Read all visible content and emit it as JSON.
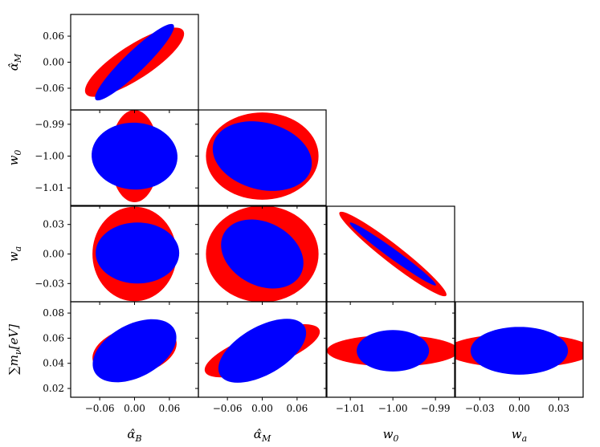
{
  "chart_data": {
    "type": "triangle-corner-ellipses",
    "parameters": [
      {
        "key": "aB",
        "label": "α̂_B",
        "ticks": [
          "-0.06",
          "0.00",
          "0.06"
        ],
        "range": [
          -0.11,
          0.11
        ]
      },
      {
        "key": "aM",
        "label": "α̂_M",
        "ticks": [
          "-0.06",
          "0.00",
          "0.06"
        ],
        "range": [
          -0.11,
          0.11
        ]
      },
      {
        "key": "w0",
        "label": "w_0",
        "ticks": [
          "-1.01",
          "-1.00",
          "-0.99"
        ],
        "range": [
          -1.0155,
          -0.9855
        ]
      },
      {
        "key": "wa",
        "label": "w_a",
        "ticks": [
          "-0.03",
          "0.00",
          "0.03"
        ],
        "range": [
          -0.0485,
          0.0485
        ]
      },
      {
        "key": "mnu",
        "label": "∑m_ν[eV]",
        "ticks": [
          "0.02",
          "0.04",
          "0.06",
          "0.08"
        ],
        "range": [
          0.013,
          0.089
        ]
      }
    ],
    "series": [
      {
        "color": "#ff0000"
      },
      {
        "color": "#0000ff"
      }
    ],
    "ellipses": [
      {
        "x": "aB",
        "y": "aM",
        "red": {
          "cx": 0.0,
          "cy": 0.0,
          "rx": 0.1,
          "ry": 0.039,
          "angle": 33
        },
        "blue": {
          "cx": 0.0,
          "cy": 0.0,
          "rx": 0.093,
          "ry": 0.024,
          "angle": 44
        }
      },
      {
        "x": "aB",
        "y": "w0",
        "red": {
          "cx": 0.0,
          "cy": -1.0,
          "rx": 0.042,
          "ry": 0.0145,
          "angle": 0
        },
        "blue": {
          "cx": 0.0,
          "cy": -1.0,
          "rx": 0.074,
          "ry": 0.0105,
          "angle": -3
        }
      },
      {
        "x": "aB",
        "y": "wa",
        "red": {
          "cx": 0.0,
          "cy": 0.0,
          "rx": 0.0725,
          "ry": 0.048,
          "angle": 0
        },
        "blue": {
          "cx": 0.005,
          "cy": 0.001,
          "rx": 0.072,
          "ry": 0.031,
          "angle": 0
        }
      },
      {
        "x": "aB",
        "y": "mnu",
        "red": {
          "cx": 0.0,
          "cy": 0.05,
          "rx": 0.074,
          "ry": 0.019,
          "angle": 14
        },
        "blue": {
          "cx": 0.0,
          "cy": 0.05,
          "rx": 0.078,
          "ry": 0.021,
          "angle": 28
        }
      },
      {
        "x": "aM",
        "y": "w0",
        "red": {
          "cx": 0.0,
          "cy": -1.0,
          "rx": 0.097,
          "ry": 0.0137,
          "angle": 0
        },
        "blue": {
          "cx": 0.0,
          "cy": -1.0,
          "rx": 0.087,
          "ry": 0.0105,
          "angle": -15
        }
      },
      {
        "x": "aM",
        "y": "wa",
        "red": {
          "cx": 0.0,
          "cy": 0.0,
          "rx": 0.097,
          "ry": 0.049,
          "angle": 0
        },
        "blue": {
          "cx": 0.0,
          "cy": 0.0,
          "rx": 0.075,
          "ry": 0.032,
          "angle": -28
        }
      },
      {
        "x": "aM",
        "y": "mnu",
        "red": {
          "cx": 0.0,
          "cy": 0.05,
          "rx": 0.105,
          "ry": 0.014,
          "angle": 20
        },
        "blue": {
          "cx": 0.0,
          "cy": 0.05,
          "rx": 0.084,
          "ry": 0.019,
          "angle": 30
        }
      },
      {
        "x": "w0",
        "y": "wa",
        "red": {
          "cx": -1.0,
          "cy": 0.0,
          "rx": 0.0159,
          "ry": 0.0093,
          "angle": -38
        },
        "blue": {
          "cx": -1.0,
          "cy": 0.0,
          "rx": 0.0125,
          "ry": 0.0049,
          "angle": -36
        }
      },
      {
        "x": "w0",
        "y": "mnu",
        "red": {
          "cx": -1.0,
          "cy": 0.05,
          "rx": 0.0155,
          "ry": 0.0125,
          "angle": 0
        },
        "blue": {
          "cx": -1.0,
          "cy": 0.05,
          "rx": 0.0085,
          "ry": 0.0165,
          "angle": 0
        }
      },
      {
        "x": "wa",
        "y": "mnu",
        "red": {
          "cx": 0.0,
          "cy": 0.05,
          "rx": 0.056,
          "ry": 0.0135,
          "angle": 0
        },
        "blue": {
          "cx": 0.0,
          "cy": 0.05,
          "rx": 0.037,
          "ry": 0.019,
          "angle": 0
        }
      }
    ]
  }
}
